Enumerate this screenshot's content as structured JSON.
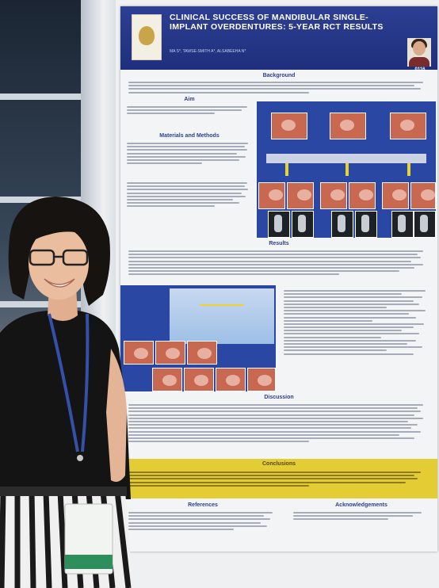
{
  "poster": {
    "title": "CLINICAL SUCCESS OF MANDIBULAR SINGLE-\nIMPLANT OVERDENTURES: 5-YEAR RCT RESULTS",
    "authors": "MA S*, TAWSE-SMITH A*, ALSABEEHA N*",
    "poster_id": "0116",
    "sections": {
      "background": "Background",
      "aims": "Aim",
      "materials_methods": "Materials and Methods",
      "results": "Results",
      "discussion": "Discussion",
      "conclusions": "Conclusions",
      "references": "References",
      "acknowledgements": "Acknowledgements"
    }
  },
  "colors": {
    "poster_header": "#233488",
    "poster_panel": "#2b47a4",
    "conclusion_band": "#e4cc35",
    "presenter_shirt": "#1a1a1a",
    "lanyard": "#3450a8"
  }
}
